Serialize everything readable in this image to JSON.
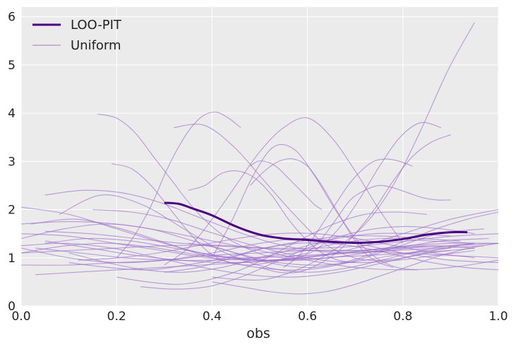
{
  "chart_data": {
    "type": "line",
    "title": "",
    "xlabel": "obs",
    "ylabel": "",
    "xlim": [
      0.0,
      1.0
    ],
    "ylim": [
      0,
      6.2
    ],
    "x_ticks": [
      "0.0",
      "0.2",
      "0.4",
      "0.6",
      "0.8",
      "1.0"
    ],
    "y_ticks": [
      "0",
      "1",
      "2",
      "3",
      "4",
      "5",
      "6"
    ],
    "grid": true,
    "legend_position": "top-left",
    "legend": [
      {
        "label": "LOO-PIT",
        "color": "#4b0082",
        "style": "thick"
      },
      {
        "label": "Uniform",
        "color": "#9b6bc9",
        "style": "thin"
      }
    ],
    "colors": {
      "loo_pit": "#4b0082",
      "uniform": "#9b6bc9",
      "background": "#ebebeb",
      "grid": "#ffffff"
    },
    "series": [
      {
        "name": "LOO-PIT",
        "x": [
          0.3,
          0.33,
          0.36,
          0.4,
          0.45,
          0.5,
          0.55,
          0.6,
          0.65,
          0.7,
          0.75,
          0.8,
          0.85,
          0.9,
          0.935
        ],
        "y": [
          2.14,
          2.12,
          2.02,
          1.88,
          1.65,
          1.48,
          1.4,
          1.37,
          1.33,
          1.31,
          1.33,
          1.39,
          1.48,
          1.53,
          1.53
        ]
      },
      {
        "name": "Uniform",
        "samples": [
          {
            "x0": 0.0,
            "x1": 0.95,
            "y": [
              1.1,
              1.25,
              1.3,
              1.2,
              1.05,
              1.0,
              1.1,
              1.3,
              1.4,
              1.35,
              1.3
            ]
          },
          {
            "x0": 0.0,
            "x1": 1.0,
            "y": [
              2.05,
              1.9,
              1.6,
              1.3,
              1.05,
              0.95,
              1.0,
              1.2,
              1.5,
              1.8,
              2.0
            ]
          },
          {
            "x0": 0.05,
            "x1": 0.95,
            "y": [
              1.3,
              1.4,
              1.35,
              1.2,
              1.05,
              0.95,
              1.0,
              1.1,
              1.2,
              1.25,
              1.2
            ]
          },
          {
            "x0": 0.03,
            "x1": 0.9,
            "y": [
              0.65,
              0.7,
              0.75,
              0.8,
              0.85,
              0.9,
              0.95,
              1.0,
              1.05,
              1.1,
              1.15
            ]
          },
          {
            "x0": 0.02,
            "x1": 0.97,
            "y": [
              1.7,
              1.8,
              1.6,
              1.3,
              1.0,
              0.8,
              0.75,
              0.9,
              1.2,
              1.5,
              1.6
            ]
          },
          {
            "x0": 0.0,
            "x1": 1.0,
            "y": [
              1.2,
              1.0,
              0.9,
              0.95,
              1.1,
              1.3,
              1.4,
              1.3,
              1.1,
              0.95,
              0.9
            ]
          },
          {
            "x0": 0.08,
            "x1": 0.95,
            "y": [
              1.9,
              2.3,
              2.1,
              1.6,
              1.1,
              0.8,
              0.7,
              0.8,
              1.0,
              1.2,
              1.3
            ]
          },
          {
            "x0": 0.0,
            "x1": 0.98,
            "y": [
              1.5,
              1.45,
              1.3,
              1.15,
              1.0,
              0.95,
              0.95,
              1.05,
              1.2,
              1.35,
              1.4
            ]
          },
          {
            "x0": 0.1,
            "x1": 0.92,
            "y": [
              0.9,
              0.8,
              0.75,
              0.85,
              1.0,
              1.2,
              1.35,
              1.45,
              1.45,
              1.4,
              1.35
            ]
          },
          {
            "x0": 0.05,
            "x1": 1.0,
            "y": [
              1.35,
              1.2,
              1.05,
              0.95,
              0.9,
              0.95,
              1.05,
              1.15,
              1.25,
              1.3,
              1.3
            ]
          },
          {
            "x0": 0.16,
            "x1": 0.55,
            "y": [
              3.98,
              3.9,
              3.6,
              3.1,
              2.6,
              2.1,
              1.7,
              1.4,
              1.2,
              1.05,
              1.0
            ]
          },
          {
            "x0": 0.4,
            "x1": 0.95,
            "y": [
              0.6,
              0.55,
              0.55,
              0.7,
              0.95,
              1.3,
              1.8,
              2.6,
              3.7,
              4.9,
              5.88
            ]
          },
          {
            "x0": 0.3,
            "x1": 0.8,
            "y": [
              0.85,
              1.2,
              1.8,
              2.5,
              3.2,
              3.7,
              3.9,
              3.5,
              2.8,
              2.0,
              1.3
            ]
          },
          {
            "x0": 0.32,
            "x1": 0.95,
            "y": [
              3.7,
              3.75,
              3.3,
              2.6,
              1.9,
              1.3,
              1.0,
              0.95,
              1.05,
              1.2,
              1.3
            ]
          },
          {
            "x0": 0.4,
            "x1": 0.83,
            "y": [
              1.0,
              1.8,
              2.7,
              3.3,
              3.25,
              2.7,
              2.0,
              1.4,
              1.0,
              0.8,
              0.75
            ]
          },
          {
            "x0": 0.2,
            "x1": 0.46,
            "y": [
              1.0,
              1.3,
              1.7,
              2.2,
              2.8,
              3.3,
              3.7,
              3.95,
              4.02,
              3.9,
              3.7
            ]
          },
          {
            "x0": 0.45,
            "x1": 0.88,
            "y": [
              1.0,
              0.95,
              0.95,
              1.0,
              1.2,
              1.6,
              2.2,
              2.9,
              3.5,
              3.8,
              3.7
            ]
          },
          {
            "x0": 0.5,
            "x1": 0.9,
            "y": [
              0.8,
              0.7,
              0.7,
              0.85,
              1.1,
              1.5,
              2.0,
              2.6,
              3.1,
              3.4,
              3.55
            ]
          },
          {
            "x0": 0.48,
            "x1": 0.78,
            "y": [
              2.5,
              2.8,
              3.0,
              3.05,
              2.9,
              2.5,
              2.0,
              1.5,
              1.1,
              0.9,
              0.8
            ]
          },
          {
            "x0": 0.48,
            "x1": 0.63,
            "y": [
              2.9,
              3.0,
              3.0,
              2.95,
              2.85,
              2.7,
              2.55,
              2.4,
              2.25,
              2.1,
              2.0
            ]
          },
          {
            "x0": 0.35,
            "x1": 0.7,
            "y": [
              2.4,
              2.5,
              2.75,
              2.8,
              2.65,
              2.3,
              1.8,
              1.4,
              1.1,
              0.95,
              0.9
            ]
          },
          {
            "x0": 0.19,
            "x1": 0.6,
            "y": [
              2.95,
              2.85,
              2.5,
              2.0,
              1.5,
              1.1,
              0.9,
              0.85,
              0.9,
              1.0,
              1.1
            ]
          },
          {
            "x0": 0.6,
            "x1": 0.9,
            "y": [
              1.1,
              1.4,
              1.8,
              2.2,
              2.4,
              2.5,
              2.45,
              2.35,
              2.25,
              2.2,
              2.2
            ]
          },
          {
            "x0": 0.55,
            "x1": 0.82,
            "y": [
              0.8,
              1.0,
              1.3,
              1.7,
              2.1,
              2.5,
              2.8,
              3.0,
              3.05,
              3.0,
              2.9
            ]
          },
          {
            "x0": 0.0,
            "x1": 1.0,
            "y": [
              1.7,
              1.75,
              1.7,
              1.55,
              1.35,
              1.15,
              0.95,
              0.8,
              0.75,
              0.8,
              0.95
            ]
          },
          {
            "x0": 0.1,
            "x1": 0.9,
            "y": [
              1.1,
              0.9,
              0.75,
              0.7,
              0.8,
              1.0,
              1.2,
              1.4,
              1.5,
              1.5,
              1.45
            ]
          },
          {
            "x0": 0.2,
            "x1": 0.85,
            "y": [
              0.6,
              0.5,
              0.45,
              0.55,
              0.75,
              1.05,
              1.4,
              1.7,
              1.9,
              1.95,
              1.9
            ]
          },
          {
            "x0": 0.0,
            "x1": 0.95,
            "y": [
              1.25,
              1.3,
              1.2,
              1.0,
              0.8,
              0.65,
              0.6,
              0.7,
              0.9,
              1.1,
              1.2
            ]
          },
          {
            "x0": 0.05,
            "x1": 1.0,
            "y": [
              1.55,
              1.5,
              1.4,
              1.3,
              1.25,
              1.2,
              1.2,
              1.25,
              1.35,
              1.45,
              1.5
            ]
          },
          {
            "x0": 0.12,
            "x1": 0.95,
            "y": [
              0.95,
              1.0,
              1.1,
              1.25,
              1.4,
              1.5,
              1.5,
              1.4,
              1.25,
              1.1,
              1.0
            ]
          },
          {
            "x0": 0.25,
            "x1": 0.95,
            "y": [
              0.4,
              0.35,
              0.4,
              0.6,
              0.9,
              1.2,
              1.45,
              1.6,
              1.65,
              1.6,
              1.5
            ]
          },
          {
            "x0": 0.0,
            "x1": 0.9,
            "y": [
              1.4,
              1.6,
              1.7,
              1.6,
              1.35,
              1.1,
              0.9,
              0.85,
              0.95,
              1.1,
              1.2
            ]
          },
          {
            "x0": 0.4,
            "x1": 1.0,
            "y": [
              0.5,
              0.4,
              0.3,
              0.25,
              0.3,
              0.45,
              0.65,
              0.85,
              1.05,
              1.2,
              1.3
            ]
          },
          {
            "x0": 0.03,
            "x1": 0.97,
            "y": [
              1.2,
              1.1,
              1.0,
              0.95,
              0.95,
              1.0,
              1.05,
              1.1,
              1.15,
              1.2,
              1.25
            ]
          },
          {
            "x0": 0.15,
            "x1": 0.95,
            "y": [
              2.0,
              1.95,
              1.8,
              1.55,
              1.3,
              1.1,
              0.95,
              0.9,
              0.95,
              1.05,
              1.15
            ]
          },
          {
            "x0": 0.0,
            "x1": 1.0,
            "y": [
              0.85,
              0.85,
              0.9,
              0.95,
              1.05,
              1.1,
              1.15,
              1.15,
              1.1,
              1.05,
              1.0
            ]
          },
          {
            "x0": 0.35,
            "x1": 1.0,
            "y": [
              1.3,
              1.2,
              1.0,
              0.85,
              0.8,
              0.9,
              1.1,
              1.35,
              1.6,
              1.8,
              1.95
            ]
          },
          {
            "x0": 0.05,
            "x1": 0.85,
            "y": [
              2.3,
              2.4,
              2.35,
              2.15,
              1.85,
              1.55,
              1.3,
              1.15,
              1.1,
              1.15,
              1.25
            ]
          },
          {
            "x0": 0.3,
            "x1": 1.0,
            "y": [
              0.7,
              0.8,
              1.0,
              1.2,
              1.3,
              1.3,
              1.2,
              1.05,
              0.9,
              0.8,
              0.75
            ]
          },
          {
            "x0": 0.0,
            "x1": 1.0,
            "y": [
              1.1,
              1.15,
              1.2,
              1.25,
              1.25,
              1.2,
              1.15,
              1.15,
              1.2,
              1.25,
              1.3
            ]
          }
        ]
      }
    ]
  }
}
